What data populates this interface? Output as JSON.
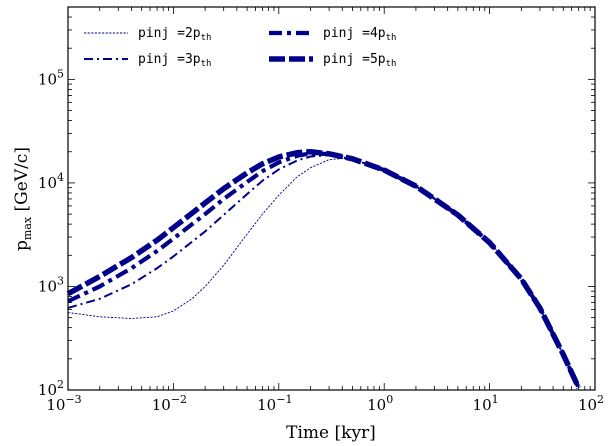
{
  "chart_data": {
    "type": "line",
    "xlabel": "Time [kyr]",
    "ylabel": "p_max [GeV/c]",
    "xscale": "log",
    "yscale": "log",
    "xlim": [
      0.001,
      100
    ],
    "ylim": [
      100,
      500000
    ],
    "x_ticks": [
      {
        "value": 0.001,
        "mantissa": "10",
        "exp": "−3"
      },
      {
        "value": 0.01,
        "mantissa": "10",
        "exp": "−2"
      },
      {
        "value": 0.1,
        "mantissa": "10",
        "exp": "−1"
      },
      {
        "value": 1,
        "mantissa": "10",
        "exp": "0"
      },
      {
        "value": 10,
        "mantissa": "10",
        "exp": "1"
      },
      {
        "value": 100,
        "mantissa": "10",
        "exp": "2"
      }
    ],
    "y_ticks": [
      {
        "value": 100,
        "mantissa": "10",
        "exp": "2"
      },
      {
        "value": 1000,
        "mantissa": "10",
        "exp": "3"
      },
      {
        "value": 10000,
        "mantissa": "10",
        "exp": "4"
      },
      {
        "value": 100000,
        "mantissa": "10",
        "exp": "5"
      }
    ],
    "legend_position": "top-left",
    "line_color": "#00008b",
    "series": [
      {
        "name": "pinj =2p_th",
        "legend_main": "pinj =2p",
        "legend_sub": "th",
        "style": "dotted",
        "x": [
          0.001,
          0.002,
          0.004,
          0.007,
          0.01,
          0.015,
          0.02,
          0.03,
          0.05,
          0.07,
          0.1,
          0.15,
          0.2,
          0.3,
          0.4,
          0.5,
          0.7,
          1,
          2,
          3,
          5,
          7,
          10,
          15,
          20,
          30,
          40,
          50,
          60,
          70
        ],
        "y": [
          560,
          510,
          490,
          510,
          580,
          760,
          1000,
          1600,
          3200,
          5000,
          7600,
          11500,
          14000,
          16800,
          17200,
          16700,
          15300,
          13300,
          9300,
          7200,
          4900,
          3700,
          2650,
          1700,
          1180,
          620,
          360,
          220,
          150,
          105
        ]
      },
      {
        "name": "pinj =3p_th",
        "legend_main": "pinj =3p",
        "legend_sub": "th",
        "style": "dashdot",
        "x": [
          0.001,
          0.002,
          0.004,
          0.007,
          0.01,
          0.02,
          0.03,
          0.05,
          0.07,
          0.1,
          0.15,
          0.2,
          0.3,
          0.5,
          1,
          2,
          5,
          10,
          20,
          30,
          50,
          70
        ],
        "y": [
          620,
          760,
          1050,
          1500,
          1950,
          3400,
          4900,
          7800,
          10500,
          13500,
          16500,
          18000,
          18500,
          17000,
          13300,
          9300,
          4900,
          2650,
          1180,
          620,
          220,
          105
        ]
      },
      {
        "name": "pinj =4p_th",
        "legend_main": "pinj =4p",
        "legend_sub": "th",
        "style": "dashdot-thick",
        "x": [
          0.001,
          0.002,
          0.004,
          0.007,
          0.01,
          0.02,
          0.03,
          0.05,
          0.07,
          0.1,
          0.15,
          0.2,
          0.3,
          0.5,
          1,
          2,
          5,
          10,
          20,
          30,
          50,
          70
        ],
        "y": [
          720,
          1000,
          1500,
          2200,
          2900,
          5000,
          7000,
          10200,
          13000,
          15800,
          18300,
          19300,
          19000,
          17100,
          13300,
          9300,
          4900,
          2650,
          1180,
          620,
          220,
          105
        ]
      },
      {
        "name": "pinj =5p_th",
        "legend_main": "pinj =5p",
        "legend_sub": "th",
        "style": "dashed-thick",
        "x": [
          0.001,
          0.002,
          0.004,
          0.007,
          0.01,
          0.02,
          0.03,
          0.05,
          0.07,
          0.1,
          0.15,
          0.2,
          0.3,
          0.5,
          1,
          2,
          5,
          10,
          20,
          30,
          50,
          70
        ],
        "y": [
          850,
          1250,
          1900,
          2800,
          3700,
          6400,
          8800,
          12500,
          15300,
          17800,
          19600,
          20000,
          19100,
          17100,
          13300,
          9300,
          4900,
          2650,
          1180,
          620,
          220,
          105
        ]
      }
    ]
  }
}
